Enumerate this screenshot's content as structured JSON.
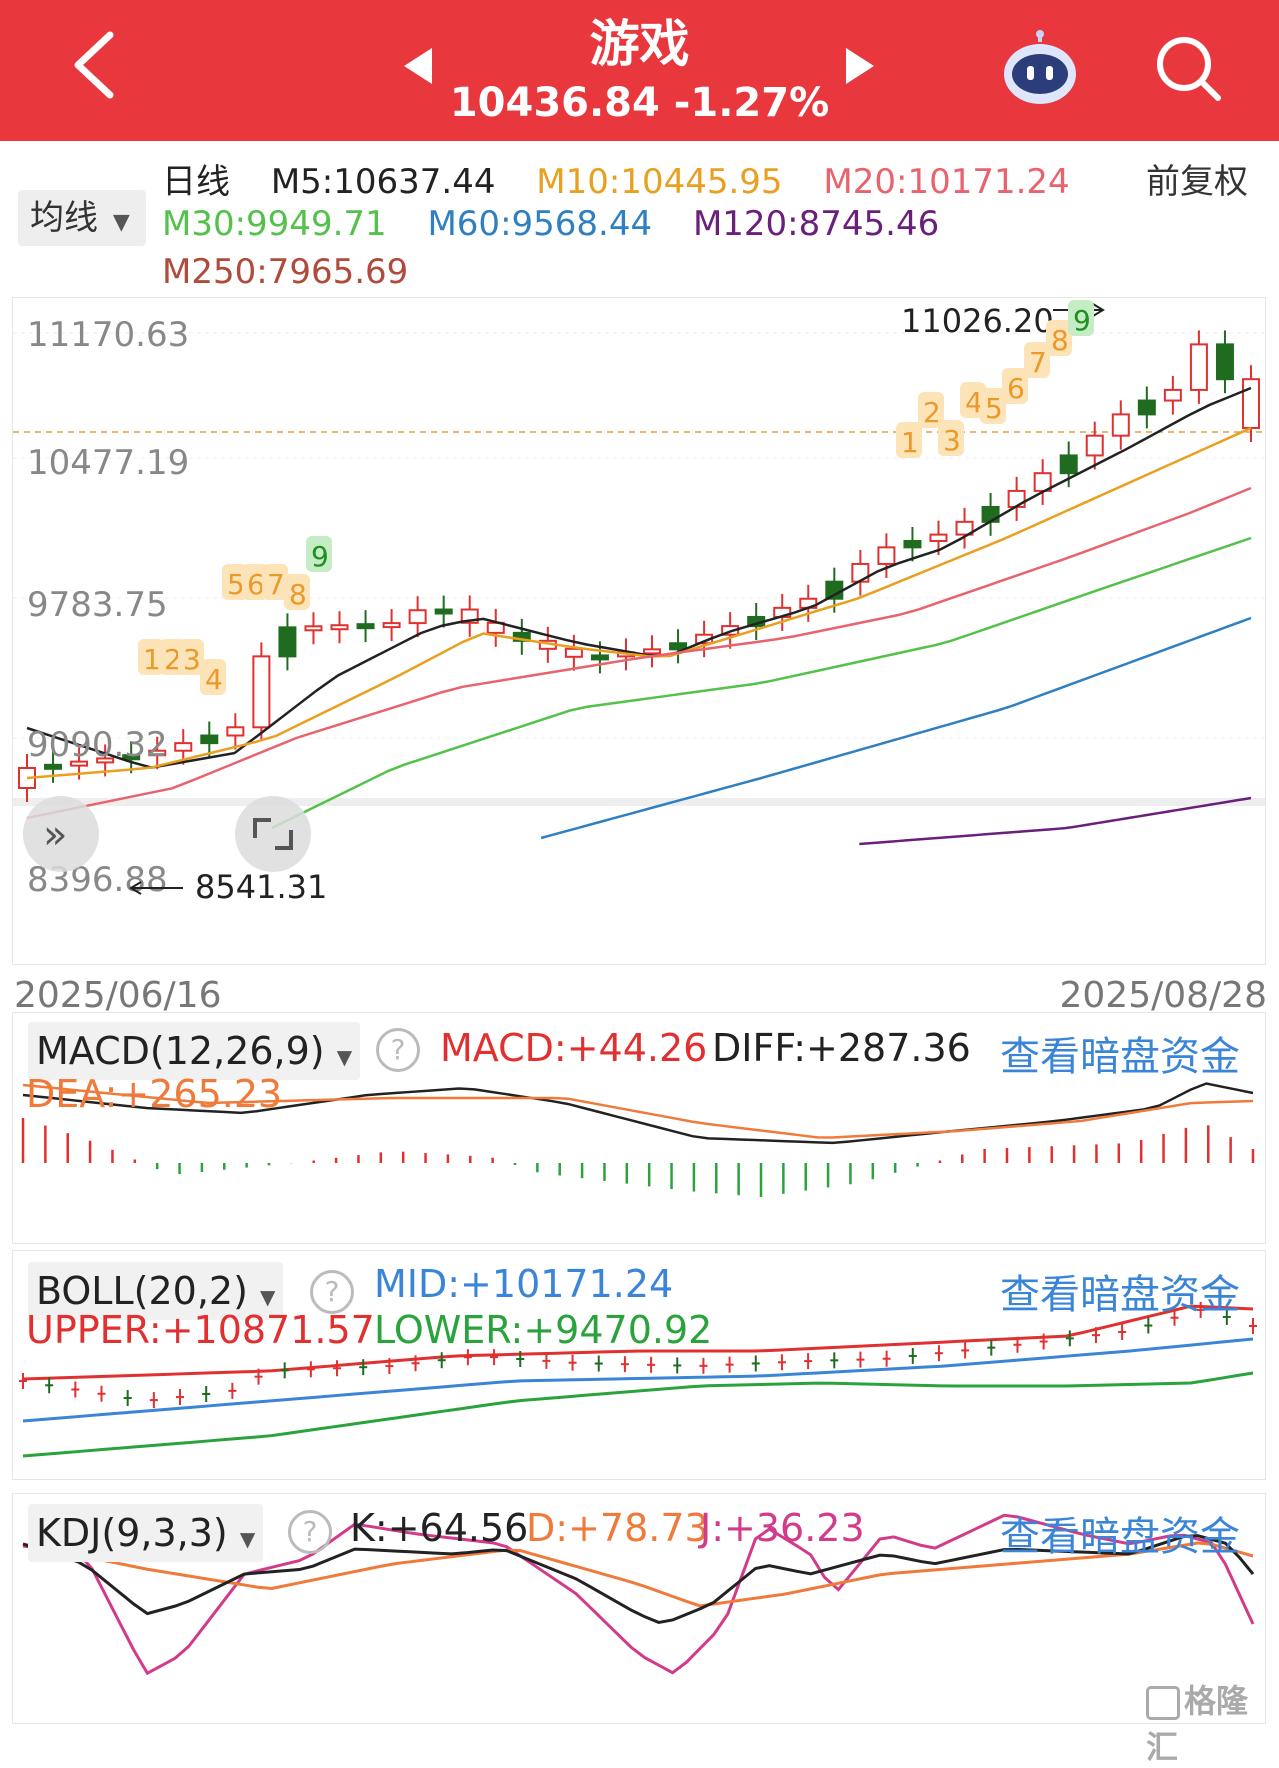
{
  "header": {
    "title": "游戏",
    "price": "10436.84",
    "change": "-1.27%",
    "icons": [
      "back-arrow-icon",
      "prev-triangle-icon",
      "next-triangle-icon",
      "robot-icon",
      "search-icon"
    ]
  },
  "ma": {
    "period": "日线",
    "m5": "M5:10637.44",
    "m10": "M10:10445.95",
    "m20": "M20:10171.24",
    "m30": "M30:9949.71",
    "m60": "M60:9568.44",
    "m120": "M120:8745.46",
    "m250": "M250:7965.69",
    "adjust": "前复权",
    "select": "均线",
    "colors": {
      "m5": "#222222",
      "m10": "#e9a020",
      "m20": "#e8636e",
      "m30": "#54c14a",
      "m60": "#2f7fc1",
      "m120": "#6a1f7a",
      "m250": "#b04a3a"
    }
  },
  "main_chart": {
    "y_labels": [
      "11170.63",
      "10477.19",
      "9783.75",
      "9090.32",
      "8396.88"
    ],
    "high_label": "11026.20",
    "low_label": "8541.31",
    "start_date": "2025/06/16",
    "end_date": "2025/08/28",
    "seq1": [
      "1",
      "2",
      "3",
      "4",
      "5",
      "6",
      "7",
      "8",
      "9"
    ],
    "seq2": [
      "1",
      "2",
      "3",
      "4",
      "5",
      "6",
      "7",
      "8",
      "9"
    ]
  },
  "macd": {
    "select": "MACD(12,26,9)",
    "macd": "MACD:+44.26",
    "diff": "DIFF:+287.36",
    "dea": "DEA:+265.23",
    "link": "查看暗盘资金"
  },
  "boll": {
    "select": "BOLL(20,2)",
    "mid": "MID:+10171.24",
    "upper": "UPPER:+10871.57",
    "lower": "LOWER:+9470.92",
    "link": "查看暗盘资金"
  },
  "kdj": {
    "select": "KDJ(9,3,3)",
    "k": "K:+64.56",
    "d": "D:+78.73",
    "j": "J:+36.23",
    "link": "查看暗盘资金"
  },
  "watermark": "格隆汇"
}
